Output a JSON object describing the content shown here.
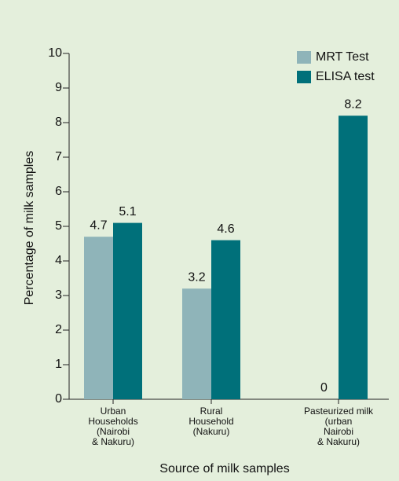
{
  "chart_data": {
    "type": "bar",
    "categories": [
      [
        "Urban",
        "Households",
        "(Nairobi",
        "& Nakuru)"
      ],
      [
        "Rural",
        "Household",
        "(Nakuru)"
      ],
      [
        "Pasteurized milk",
        "(urban",
        "Nairobi",
        "& Nakuru)"
      ]
    ],
    "series": [
      {
        "name": "MRT Test",
        "color": "#8fb4b9",
        "values": [
          4.7,
          3.2,
          0
        ]
      },
      {
        "name": "ELISA test",
        "color": "#00707a",
        "values": [
          5.1,
          4.6,
          8.2
        ]
      }
    ],
    "ylabel": "Percentage of milk samples",
    "xlabel": "Source of milk samples",
    "ylim": [
      0,
      10
    ],
    "yticks": [
      0,
      1,
      2,
      3,
      4,
      5,
      6,
      7,
      8,
      9,
      10
    ],
    "legend": "upper right"
  }
}
